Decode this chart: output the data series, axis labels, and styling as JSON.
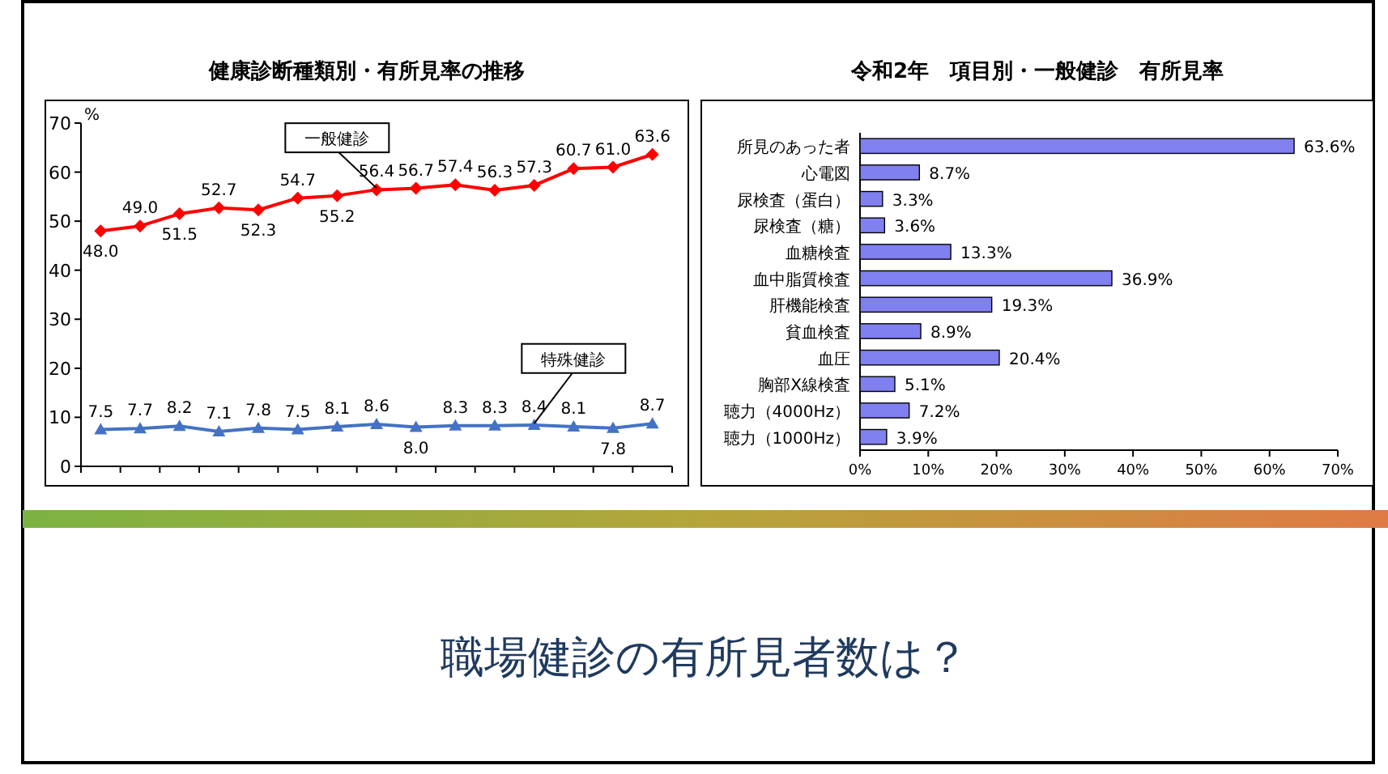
{
  "chart_data": [
    {
      "type": "line",
      "title": "健康診断種類別・有所見率の推移",
      "ylabel": "%",
      "categories": [
        null,
        null,
        null,
        null,
        null,
        null,
        null,
        null,
        null,
        null,
        null,
        null,
        null,
        null,
        null
      ],
      "ylim": [
        0,
        70
      ],
      "yticks": [
        0,
        10,
        20,
        30,
        40,
        50,
        60,
        70
      ],
      "grid": false,
      "tick_labels": "y",
      "series": [
        {
          "name": "一般健診",
          "color": "#ff0000",
          "marker": "diamond",
          "values": [
            48.0,
            49.0,
            51.5,
            52.7,
            52.3,
            54.7,
            55.2,
            56.4,
            56.7,
            57.4,
            56.3,
            57.3,
            60.7,
            61.0,
            63.6
          ],
          "value_labels": [
            "48.0",
            "49.0",
            "51.5",
            "52.7",
            "52.3",
            "54.7",
            "55.2",
            "56.4",
            "56.7",
            "57.4",
            "56.3",
            "57.3",
            "60.7",
            "61.0",
            "63.6"
          ]
        },
        {
          "name": "特殊健診",
          "color": "#4472c4",
          "marker": "triangle",
          "values": [
            7.5,
            7.7,
            8.2,
            7.1,
            7.8,
            7.5,
            8.1,
            8.6,
            8.0,
            8.3,
            8.3,
            8.4,
            8.1,
            7.8,
            8.7
          ],
          "value_labels": [
            "7.5",
            "7.7",
            "8.2",
            "7.1",
            "7.8",
            "7.5",
            "8.1",
            "8.6",
            "8.0",
            "8.3",
            "8.3",
            "8.4",
            "8.1",
            "7.8",
            "8.7"
          ]
        }
      ]
    },
    {
      "type": "bar",
      "orientation": "horizontal",
      "title": "令和2年　項目別・一般健診　有所見率",
      "categories": [
        "所見のあった者",
        "心電図",
        "尿検査（蛋白）",
        "尿検査（糖）",
        "血糖検査",
        "血中脂質検査",
        "肝機能検査",
        "貧血検査",
        "血圧",
        "胸部X線検査",
        "聴力（4000Hz）",
        "聴力（1000Hz）"
      ],
      "values": [
        63.6,
        8.7,
        3.3,
        3.6,
        13.3,
        36.9,
        19.3,
        8.9,
        20.4,
        5.1,
        7.2,
        3.9
      ],
      "value_labels": [
        "63.6%",
        "8.7%",
        "3.3%",
        "3.6%",
        "13.3%",
        "36.9%",
        "19.3%",
        "8.9%",
        "20.4%",
        "5.1%",
        "7.2%",
        "3.9%"
      ],
      "color": "#8080f0",
      "xlim": [
        0,
        70
      ],
      "xticks": [
        {
          "value": 0,
          "label": "0%"
        },
        {
          "value": 10,
          "label": "10%"
        },
        {
          "value": 20,
          "label": "20%"
        },
        {
          "value": 30,
          "label": "30%"
        },
        {
          "value": 40,
          "label": "40%"
        },
        {
          "value": 50,
          "label": "50%"
        },
        {
          "value": 60,
          "label": "60%"
        },
        {
          "value": 70,
          "label": "70%"
        }
      ],
      "grid": false
    },
    {
      "type": "other",
      "title": "職場健診の有所見者数は？"
    }
  ]
}
